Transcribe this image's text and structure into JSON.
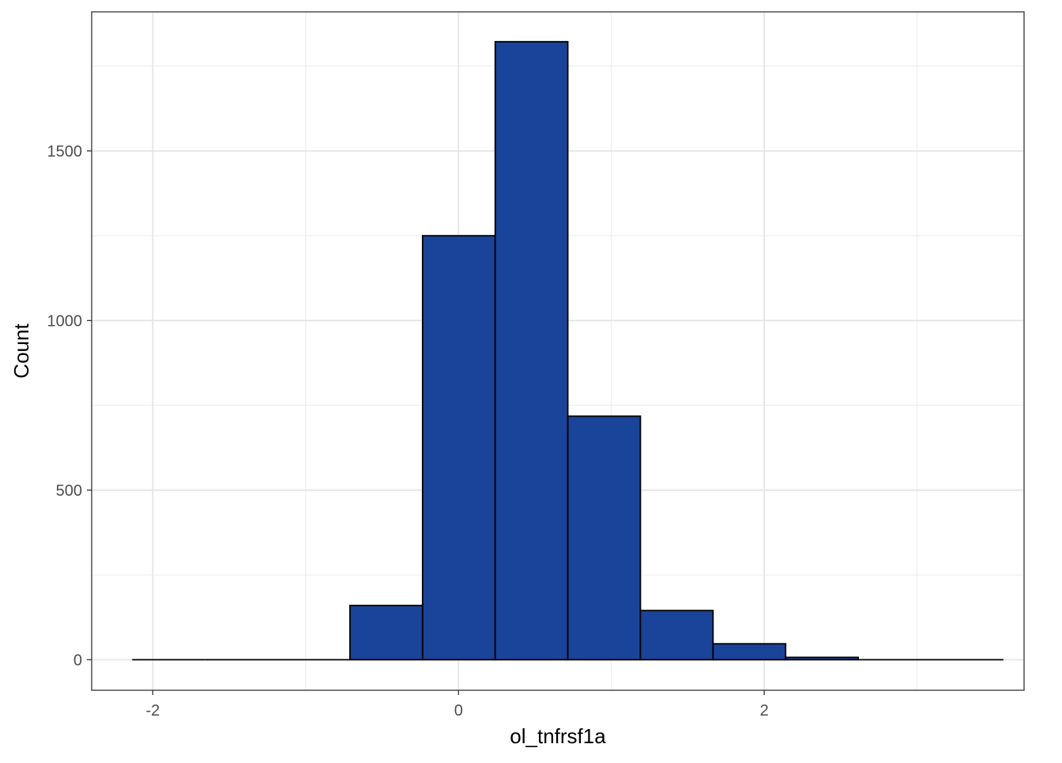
{
  "chart_data": {
    "type": "bar",
    "subtype": "histogram",
    "title": "",
    "xlabel": "ol_tnfrsf1a",
    "ylabel": "Count",
    "xlim": [
      -2.4,
      3.7
    ],
    "ylim": [
      -90,
      1910
    ],
    "x_ticks": [
      -2,
      0,
      2
    ],
    "x_tick_labels": [
      "-2",
      "0",
      "2"
    ],
    "x_minor_ticks": [
      -1,
      1,
      3
    ],
    "y_ticks": [
      0,
      500,
      1000,
      1500
    ],
    "y_tick_labels": [
      "0",
      "500",
      "1000",
      "1500"
    ],
    "y_minor_ticks": [
      250,
      750,
      1250,
      1750
    ],
    "grid": true,
    "fill_color": "#1a4499",
    "outline_color": "#000000",
    "bins": [
      {
        "x_min": -2.135,
        "x_max": -1.66,
        "count": 0
      },
      {
        "x_min": -1.66,
        "x_max": -1.185,
        "count": 0
      },
      {
        "x_min": -1.185,
        "x_max": -0.71,
        "count": 0
      },
      {
        "x_min": -0.71,
        "x_max": -0.235,
        "count": 160
      },
      {
        "x_min": -0.235,
        "x_max": 0.24,
        "count": 1250
      },
      {
        "x_min": 0.24,
        "x_max": 0.715,
        "count": 1822
      },
      {
        "x_min": 0.715,
        "x_max": 1.19,
        "count": 718
      },
      {
        "x_min": 1.19,
        "x_max": 1.665,
        "count": 145
      },
      {
        "x_min": 1.665,
        "x_max": 2.14,
        "count": 47
      },
      {
        "x_min": 2.14,
        "x_max": 2.615,
        "count": 7
      },
      {
        "x_min": 2.615,
        "x_max": 3.09,
        "count": 0
      },
      {
        "x_min": 3.09,
        "x_max": 3.565,
        "count": 0
      }
    ]
  }
}
